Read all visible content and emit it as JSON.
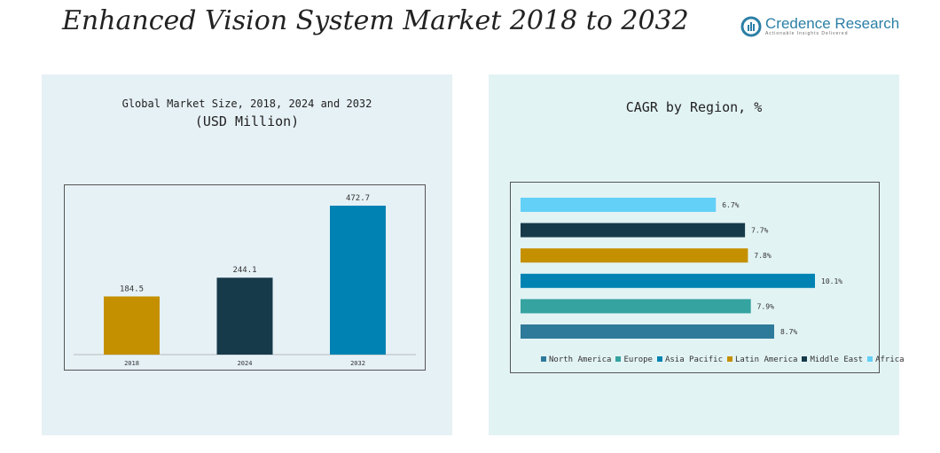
{
  "title": "Enhanced Vision System Market 2018 to 2032",
  "logo": {
    "name": "Credence Research",
    "tagline": "Actionable Insights Delivered"
  },
  "chart_data": [
    {
      "type": "bar",
      "title": "Global Market Size, 2018, 2024 and 2032",
      "subtitle": "(USD Million)",
      "categories": [
        "2018",
        "2024",
        "2032"
      ],
      "values": [
        184.5,
        244.1,
        472.7
      ],
      "labels": [
        "184.5",
        "244.1",
        "472.7"
      ],
      "colors": [
        "#c49000",
        "#173a4a",
        "#0083b3"
      ],
      "ylim": [
        0,
        472.7
      ]
    },
    {
      "type": "bar",
      "orientation": "horizontal",
      "title": "CAGR by Region, %",
      "categories": [
        "North America",
        "Europe",
        "Asia Pacific",
        "Latin America",
        "Middle East",
        "Africa"
      ],
      "values": [
        8.7,
        7.9,
        10.1,
        7.8,
        7.7,
        6.7
      ],
      "labels": [
        "8.7%",
        "7.9%",
        "10.1%",
        "7.8%",
        "7.7%",
        "6.7%"
      ],
      "colors": [
        "#2e7a9a",
        "#35a3a0",
        "#0083b3",
        "#c49000",
        "#173a4a",
        "#63d0f7"
      ],
      "xlim": [
        0,
        10.1
      ],
      "legend": "bottom"
    }
  ]
}
